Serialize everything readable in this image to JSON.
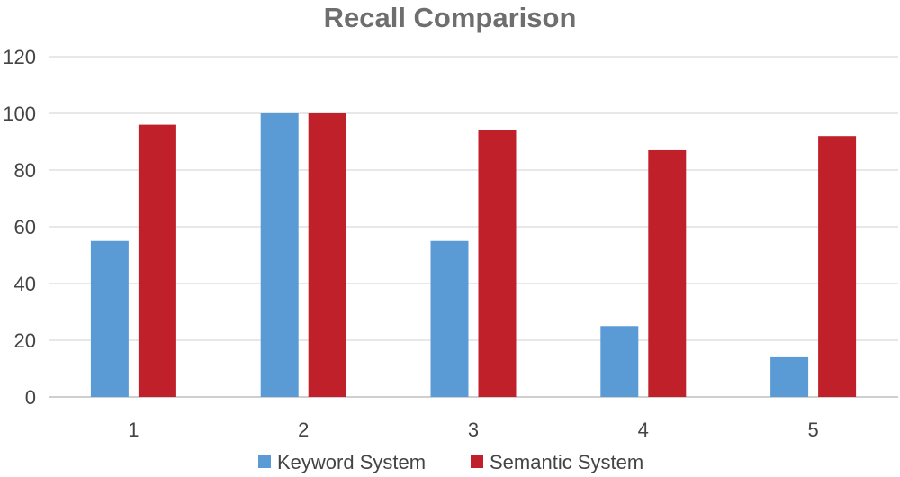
{
  "chart_data": {
    "type": "bar",
    "title": "Recall Comparison",
    "categories": [
      "1",
      "2",
      "3",
      "4",
      "5"
    ],
    "series": [
      {
        "name": "Keyword System",
        "values": [
          55,
          100,
          55,
          25,
          14
        ],
        "color": "#5b9bd5"
      },
      {
        "name": "Semantic System",
        "values": [
          96,
          100,
          94,
          87,
          92
        ],
        "color": "#c0202a"
      }
    ],
    "xlabel": "",
    "ylabel": "",
    "ylim": [
      0,
      120
    ],
    "yticks": [
      0,
      20,
      40,
      60,
      80,
      100,
      120
    ],
    "grid": true,
    "legend_position": "bottom"
  }
}
